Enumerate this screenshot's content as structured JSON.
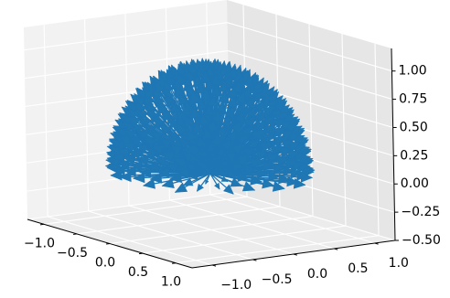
{
  "chart_data": {
    "type": "quiver3d",
    "title": "",
    "xlabel": "",
    "ylabel": "",
    "zlabel": "",
    "xlim": [
      -1.25,
      1.25
    ],
    "ylim": [
      -1.25,
      1.25
    ],
    "zlim": [
      -0.5,
      1.2
    ],
    "grid": true,
    "origin": [
      0,
      0,
      0
    ],
    "arrow_color": "#1f77b4",
    "arrow_count": 500,
    "arrow_length": 1.0,
    "arrow_direction": "unit vectors spread over the upper hemisphere (z >= 0)",
    "x_tick_labels": [
      "−1.0",
      "−0.5",
      "0.0",
      "0.5",
      "1.0"
    ],
    "y_tick_labels": [
      "−1.0",
      "−0.5",
      "0.0",
      "0.5",
      "1.0"
    ],
    "z_tick_labels": [
      "−0.50",
      "−0.25",
      "0.00",
      "0.25",
      "0.50",
      "0.75",
      "1.00"
    ],
    "x_ticks": [
      -1.0,
      -0.5,
      0.0,
      0.5,
      1.0
    ],
    "y_ticks": [
      -1.0,
      -0.5,
      0.0,
      0.5,
      1.0
    ],
    "z_ticks": [
      -0.5,
      -0.25,
      0.0,
      0.25,
      0.5,
      0.75,
      1.0
    ]
  }
}
